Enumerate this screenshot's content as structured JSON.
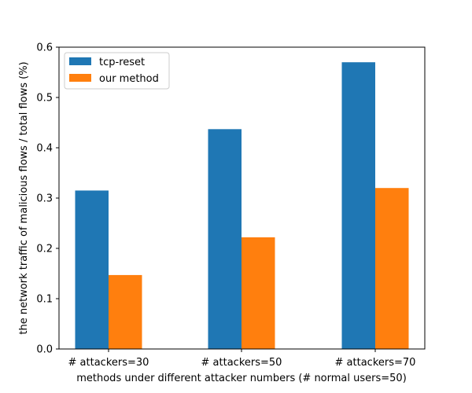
{
  "chart_data": {
    "type": "bar",
    "categories": [
      "# attackers=30",
      "# attackers=50",
      "# attackers=70"
    ],
    "series": [
      {
        "name": "tcp-reset",
        "values": [
          0.315,
          0.437,
          0.57
        ],
        "color": "#1f77b4"
      },
      {
        "name": "our method",
        "values": [
          0.147,
          0.222,
          0.32
        ],
        "color": "#ff7f0e"
      }
    ],
    "xlabel": "methods under different attacker numbers (# normal users=50)",
    "ylabel": "the network traffic of malicious flows / total flows (%)",
    "ylim": [
      0,
      0.6
    ],
    "yticks": [
      "0.0",
      "0.1",
      "0.2",
      "0.3",
      "0.4",
      "0.5",
      "0.6"
    ],
    "grid": false,
    "legend_position": "top-left"
  }
}
